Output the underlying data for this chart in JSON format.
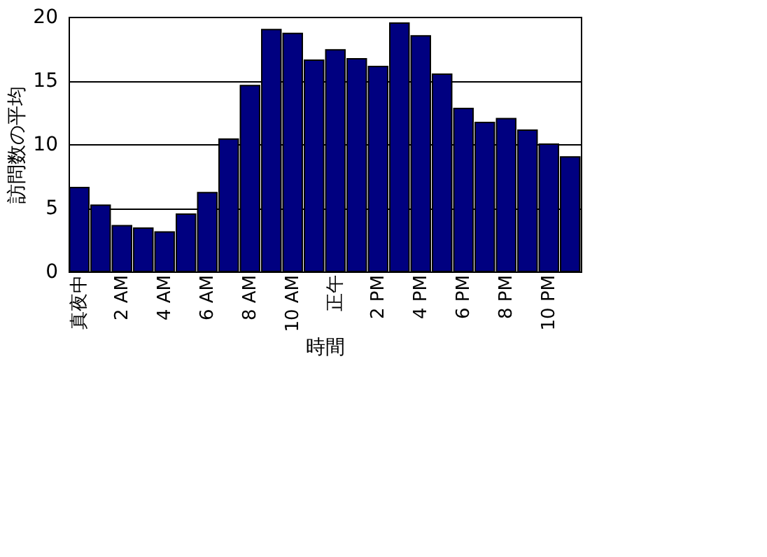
{
  "chart_data": {
    "type": "bar",
    "xlabel": "時間",
    "ylabel": "訪問数の平均",
    "categories": [
      "真夜中",
      null,
      "2 AM",
      null,
      "4 AM",
      null,
      "6 AM",
      null,
      "8 AM",
      null,
      "10 AM",
      null,
      "正午",
      null,
      "2 PM",
      null,
      "4 PM",
      null,
      "6 PM",
      null,
      "8 PM",
      null,
      "10 PM",
      null
    ],
    "values": [
      6.6,
      5.2,
      3.6,
      3.4,
      3.1,
      4.5,
      6.2,
      10.4,
      14.6,
      19.0,
      18.7,
      16.6,
      17.4,
      16.7,
      16.1,
      19.5,
      18.5,
      15.5,
      12.8,
      11.7,
      12.0,
      11.1,
      10.0,
      9.0
    ],
    "color": "#000080",
    "ylim": [
      0,
      20
    ],
    "yticks": [
      0,
      5,
      10,
      15,
      20
    ],
    "grid": "y"
  }
}
